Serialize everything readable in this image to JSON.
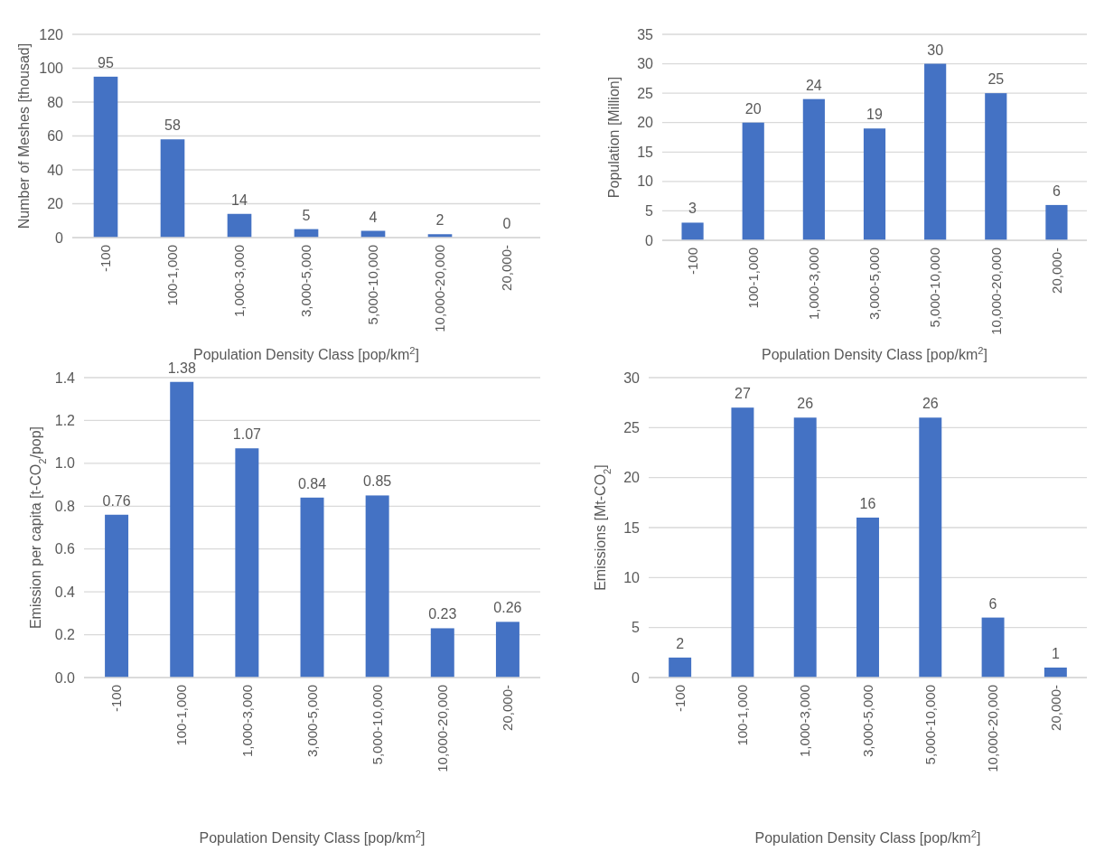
{
  "chart_data": [
    {
      "type": "bar",
      "xlabel": "Population Density Class [pop/km$^{2}$]",
      "ylabel": "Number of Meshes [thousad]",
      "categories": [
        "-100",
        "100-1,000",
        "1,000-3,000",
        "3,000-5,000",
        "5,000-10,000",
        "10,000-20,000",
        "20,000-"
      ],
      "values": [
        95,
        58,
        14,
        5,
        4,
        2,
        0
      ],
      "color": "#4472c4",
      "ylim": [
        0,
        120
      ],
      "yticks": [
        0,
        20,
        40,
        60,
        80,
        100,
        120
      ],
      "grid": "y",
      "data_labels": true
    },
    {
      "type": "bar",
      "xlabel": "Population Density Class [pop/km$^{2}$]",
      "ylabel": "Population [Million]",
      "categories": [
        "-100",
        "100-1,000",
        "1,000-3,000",
        "3,000-5,000",
        "5,000-10,000",
        "10,000-20,000",
        "20,000-"
      ],
      "values": [
        3,
        20,
        24,
        19,
        30,
        25,
        6
      ],
      "color": "#4472c4",
      "ylim": [
        0,
        35
      ],
      "yticks": [
        0,
        5,
        10,
        15,
        20,
        25,
        30,
        35
      ],
      "grid": "y",
      "data_labels": true
    },
    {
      "type": "bar",
      "xlabel": "Population Density Class [pop/km$^{2}$]",
      "ylabel": "Emission per capita [t-CO$_{2}$/pop]",
      "categories": [
        "-100",
        "100-1,000",
        "1,000-3,000",
        "3,000-5,000",
        "5,000-10,000",
        "10,000-20,000",
        "20,000-"
      ],
      "values": [
        0.76,
        1.38,
        1.07,
        0.84,
        0.85,
        0.23,
        0.26
      ],
      "color": "#4472c4",
      "ylim": [
        0,
        1.4
      ],
      "yticks": [
        {
          "value": 0,
          "label": "0.0"
        },
        {
          "value": 0.2,
          "label": "0.2"
        },
        {
          "value": 0.4,
          "label": "0.4"
        },
        {
          "value": 0.6,
          "label": "0.6"
        },
        {
          "value": 0.8,
          "label": "0.8"
        },
        {
          "value": 1,
          "label": "1.0"
        },
        {
          "value": 1.2,
          "label": "1.2"
        },
        {
          "value": 1.4,
          "label": "1.4"
        }
      ],
      "grid": "y",
      "data_labels": true
    },
    {
      "type": "bar",
      "xlabel": "Population Density Class [pop/km$^{2}$]",
      "ylabel": "Emissions [Mt-CO$_{2}$]",
      "categories": [
        "-100",
        "100-1,000",
        "1,000-3,000",
        "3,000-5,000",
        "5,000-10,000",
        "10,000-20,000",
        "20,000-"
      ],
      "values": [
        2,
        27,
        26,
        16,
        26,
        6,
        1
      ],
      "color": "#4472c4",
      "ylim": [
        0,
        30
      ],
      "yticks": [
        0,
        5,
        10,
        15,
        20,
        25,
        30
      ],
      "grid": "y",
      "data_labels": true
    }
  ]
}
